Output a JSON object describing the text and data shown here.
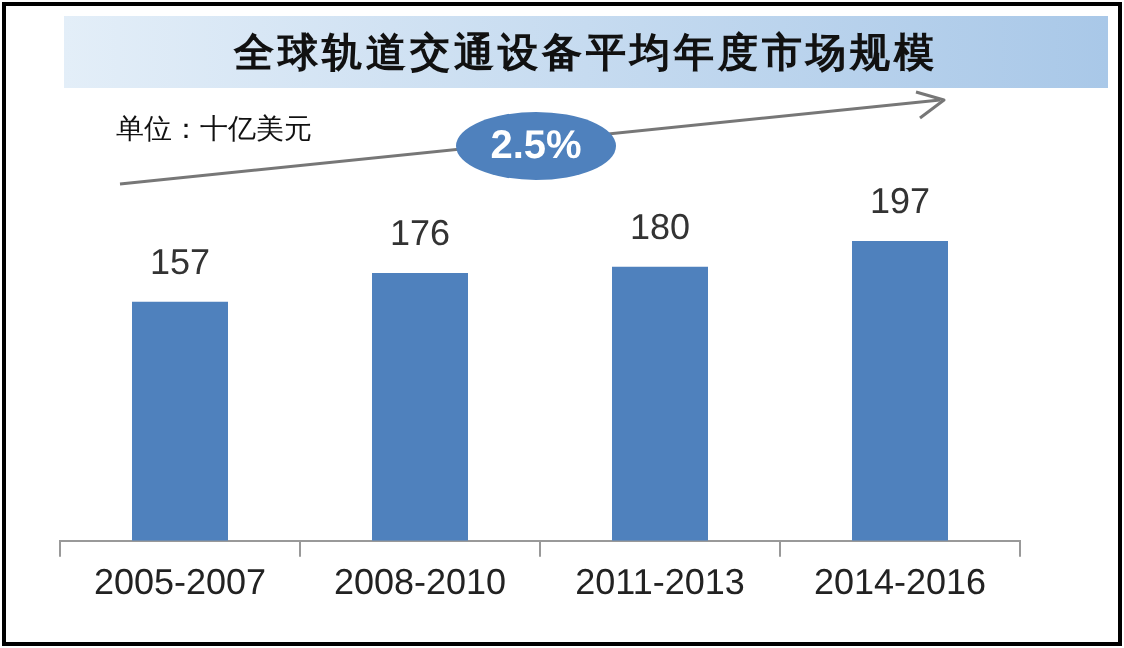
{
  "chart_data": {
    "type": "bar",
    "title": "全球轨道交通设备平均年度市场规模",
    "subtitle": "单位：十亿美元",
    "annotations": [
      "2.5%"
    ],
    "categories": [
      "2005-2007",
      "2008-2010",
      "2011-2013",
      "2014-2016"
    ],
    "values": [
      157,
      176,
      180,
      197
    ],
    "color": "#4f81bd",
    "data_labels": true,
    "grid": false,
    "legend": false
  }
}
